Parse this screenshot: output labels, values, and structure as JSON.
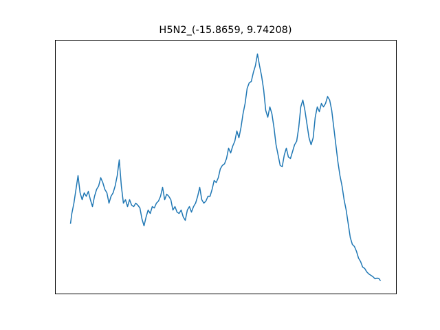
{
  "chart_data": {
    "type": "line",
    "title": "H5N2_(-15.8659, 9.74208)",
    "xlim": [
      0,
      496
    ],
    "ylim": [
      0,
      369
    ],
    "series": [
      {
        "color": "#1f77b4",
        "x": [
          22,
          24,
          27,
          30,
          33,
          36,
          39,
          42,
          45,
          48,
          51,
          54,
          57,
          60,
          63,
          66,
          69,
          72,
          75,
          78,
          81,
          84,
          87,
          90,
          93,
          96,
          99,
          102,
          105,
          108,
          111,
          114,
          117,
          120,
          123,
          126,
          129,
          132,
          135,
          138,
          141,
          144,
          147,
          150,
          153,
          156,
          159,
          162,
          165,
          168,
          171,
          174,
          177,
          180,
          183,
          186,
          189,
          192,
          195,
          198,
          201,
          204,
          207,
          210,
          213,
          216,
          219,
          222,
          225,
          228,
          231,
          234,
          237,
          240,
          243,
          246,
          249,
          252,
          255,
          258,
          261,
          264,
          267,
          270,
          273,
          276,
          279,
          282,
          285,
          288,
          291,
          294,
          297,
          300,
          303,
          306,
          309,
          312,
          315,
          318,
          321,
          324,
          327,
          330,
          333,
          336,
          339,
          342,
          345,
          348,
          351,
          354,
          357,
          360,
          363,
          366,
          369,
          372,
          375,
          378,
          381,
          384,
          387,
          390,
          393,
          396,
          399,
          402,
          405,
          408,
          411,
          414,
          417,
          420,
          423,
          426,
          429,
          432,
          435,
          438,
          441,
          444,
          447,
          450,
          453,
          456,
          459,
          462,
          465,
          468,
          471,
          473
        ],
        "values": [
          102,
          117,
          132,
          152,
          172,
          147,
          137,
          147,
          142,
          149,
          137,
          127,
          142,
          152,
          157,
          169,
          162,
          152,
          147,
          132,
          142,
          147,
          157,
          172,
          195,
          157,
          132,
          137,
          127,
          137,
          129,
          127,
          132,
          129,
          125,
          109,
          99,
          112,
          122,
          117,
          127,
          125,
          132,
          135,
          142,
          155,
          137,
          145,
          142,
          137,
          122,
          127,
          119,
          117,
          122,
          112,
          107,
          122,
          127,
          119,
          127,
          132,
          142,
          155,
          137,
          132,
          135,
          142,
          142,
          152,
          165,
          162,
          169,
          182,
          187,
          189,
          197,
          212,
          205,
          215,
          222,
          237,
          227,
          242,
          262,
          277,
          299,
          307,
          309,
          322,
          332,
          349,
          332,
          317,
          297,
          267,
          257,
          272,
          262,
          242,
          217,
          202,
          187,
          185,
          202,
          212,
          199,
          197,
          207,
          217,
          222,
          242,
          272,
          282,
          267,
          247,
          227,
          217,
          227,
          257,
          272,
          265,
          277,
          272,
          277,
          287,
          282,
          267,
          242,
          217,
          192,
          172,
          157,
          137,
          122,
          102,
          82,
          72,
          69,
          62,
          52,
          47,
          39,
          37,
          32,
          29,
          27,
          25,
          22,
          23,
          22,
          19
        ]
      }
    ]
  }
}
